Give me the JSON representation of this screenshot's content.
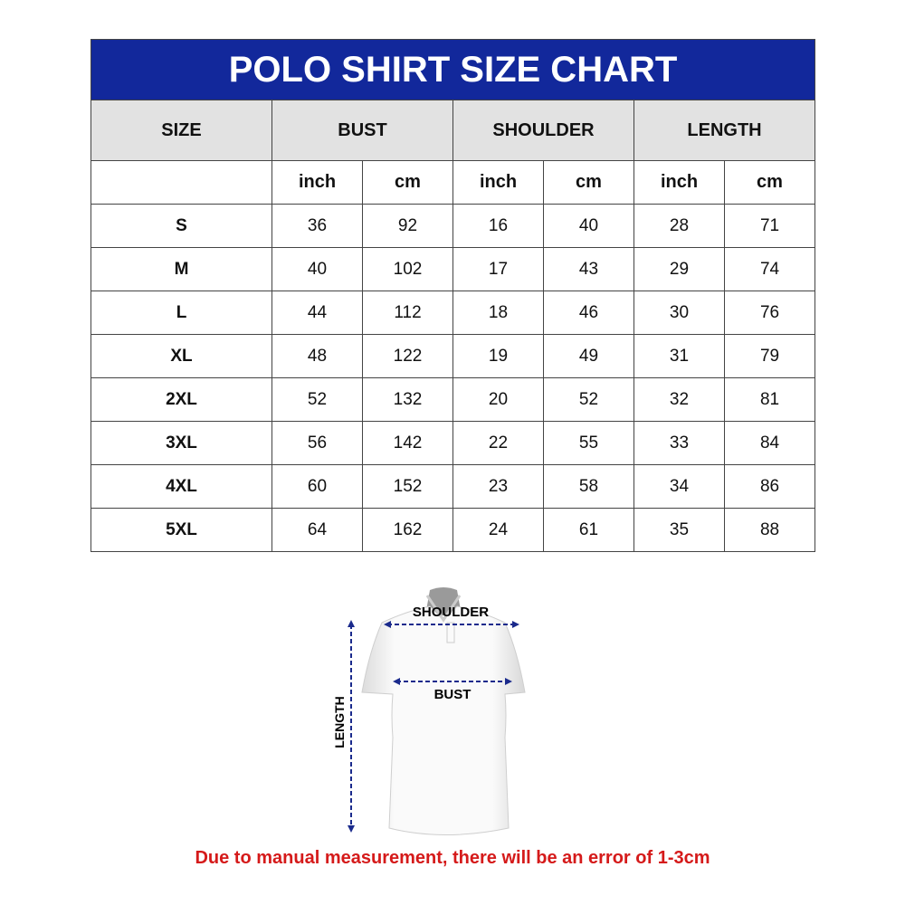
{
  "title": "POLO SHIRT SIZE CHART",
  "headers": {
    "size": "SIZE",
    "bust": "BUST",
    "shoulder": "SHOULDER",
    "length": "LENGTH"
  },
  "units": [
    "inch",
    "cm",
    "inch",
    "cm",
    "inch",
    "cm"
  ],
  "rows": [
    {
      "size": "S",
      "values": [
        "36",
        "92",
        "16",
        "40",
        "28",
        "71"
      ]
    },
    {
      "size": "M",
      "values": [
        "40",
        "102",
        "17",
        "43",
        "29",
        "74"
      ]
    },
    {
      "size": "L",
      "values": [
        "44",
        "112",
        "18",
        "46",
        "30",
        "76"
      ]
    },
    {
      "size": "XL",
      "values": [
        "48",
        "122",
        "19",
        "49",
        "31",
        "79"
      ]
    },
    {
      "size": "2XL",
      "values": [
        "52",
        "132",
        "20",
        "52",
        "32",
        "81"
      ]
    },
    {
      "size": "3XL",
      "values": [
        "56",
        "142",
        "22",
        "55",
        "33",
        "84"
      ]
    },
    {
      "size": "4XL",
      "values": [
        "60",
        "152",
        "23",
        "58",
        "34",
        "86"
      ]
    },
    {
      "size": "5XL",
      "values": [
        "64",
        "162",
        "24",
        "61",
        "35",
        "88"
      ]
    }
  ],
  "diagram": {
    "shoulder": "SHOULDER",
    "bust": "BUST",
    "length": "LENGTH"
  },
  "note": "Due to manual measurement, there will be an error of 1-3cm",
  "colors": {
    "title_bg": "#12289b",
    "header_bg": "#e2e2e2",
    "note": "#d51a1a",
    "arrow": "#1a2a8c"
  }
}
